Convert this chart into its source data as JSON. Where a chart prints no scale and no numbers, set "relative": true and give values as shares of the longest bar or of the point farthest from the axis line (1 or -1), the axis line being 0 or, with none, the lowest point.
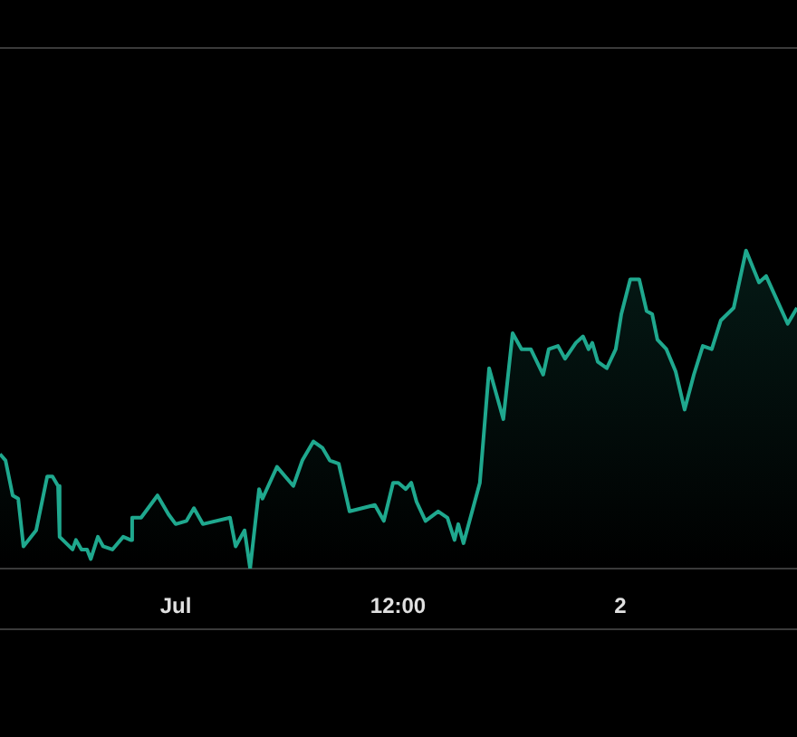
{
  "chart_data": {
    "type": "area",
    "relative": true,
    "tick_labels": "x",
    "xlim": [
      "--06-30T14:31",
      "--07-02T09:32"
    ],
    "xticks": [
      {
        "value": "--07-01",
        "label": "Jul"
      },
      {
        "value": "--07-01T12:00",
        "label": "12:00"
      },
      {
        "value": "--07-02",
        "label": "2"
      }
    ],
    "x": [
      "--06-30T14:31",
      "--06-30T14:49",
      "--06-30T15:12",
      "--06-30T15:30",
      "--06-30T15:47",
      "--06-30T16:28",
      "--06-30T17:04",
      "--06-30T17:21",
      "--06-30T17:39",
      "--06-30T17:44",
      "--06-30T18:26",
      "--06-30T18:37",
      "--06-30T18:55",
      "--06-30T19:13",
      "--06-30T19:25",
      "--06-30T19:48",
      "--06-30T20:05",
      "--06-30T20:35",
      "--06-30T21:10",
      "--06-30T21:34",
      "--06-30T21:39",
      "--06-30T22:08",
      "--06-30T23:01",
      "--06-30T23:37",
      "--07-01T00:00",
      "--07-01T00:35",
      "--07-01T00:59",
      "--07-01T01:28",
      "--07-01T02:56",
      "--07-01T03:14",
      "--07-01T03:43",
      "--07-01T04:01",
      "--07-01T04:30",
      "--07-01T04:41",
      "--07-01T05:28",
      "--07-01T06:21",
      "--07-01T06:50",
      "--07-01T07:26",
      "--07-01T07:55",
      "--07-01T08:19",
      "--07-01T08:48",
      "--07-01T09:23",
      "--07-01T10:04",
      "--07-01T10:45",
      "--07-01T11:14",
      "--07-01T11:44",
      "--07-01T12:01",
      "--07-01T12:25",
      "--07-01T12:43",
      "--07-01T13:00",
      "--07-01T13:29",
      "--07-01T14:10",
      "--07-01T14:40",
      "--07-01T15:03",
      "--07-01T15:15",
      "--07-01T15:32",
      "--07-01T16:25",
      "--07-01T16:55",
      "--07-01T17:41",
      "--07-01T18:11",
      "--07-01T18:40",
      "--07-01T19:10",
      "--07-01T19:50",
      "--07-01T20:08",
      "--07-01T20:38",
      "--07-01T21:01",
      "--07-01T21:36",
      "--07-01T21:59",
      "--07-01T22:17",
      "--07-01T22:29",
      "--07-01T22:47",
      "--07-01T23:16",
      "--07-01T23:45",
      "--07-02T00:03",
      "--07-02T00:32",
      "--07-02T01:01",
      "--07-02T01:25",
      "--07-02T01:43",
      "--07-02T02:00",
      "--07-02T02:29",
      "--07-02T02:59",
      "--07-02T03:28",
      "--07-02T03:58",
      "--07-02T04:27",
      "--07-02T04:56",
      "--07-02T05:25",
      "--07-02T06:07",
      "--07-02T06:47",
      "--07-02T07:29",
      "--07-02T07:52",
      "--07-02T09:02",
      "--07-02T09:32"
    ],
    "values": [
      0.36,
      0.34,
      0.23,
      0.22,
      0.07,
      0.12,
      0.29,
      0.29,
      0.26,
      0.1,
      0.06,
      0.09,
      0.06,
      0.06,
      0.03,
      0.1,
      0.07,
      0.06,
      0.1,
      0.09,
      0.16,
      0.16,
      0.23,
      0.17,
      0.14,
      0.15,
      0.19,
      0.14,
      0.16,
      0.07,
      0.12,
      0,
      0.25,
      0.22,
      0.32,
      0.26,
      0.34,
      0.4,
      0.38,
      0.34,
      0.33,
      0.18,
      0.19,
      0.2,
      0.15,
      0.27,
      0.27,
      0.25,
      0.27,
      0.21,
      0.15,
      0.18,
      0.16,
      0.09,
      0.14,
      0.08,
      0.27,
      0.63,
      0.47,
      0.74,
      0.69,
      0.69,
      0.61,
      0.69,
      0.7,
      0.66,
      0.71,
      0.73,
      0.69,
      0.71,
      0.65,
      0.63,
      0.69,
      0.8,
      0.91,
      0.91,
      0.81,
      0.8,
      0.72,
      0.69,
      0.62,
      0.5,
      0.61,
      0.7,
      0.69,
      0.78,
      0.82,
      1,
      0.9,
      0.92,
      0.77,
      0.82
    ],
    "color": "#1fa88e"
  }
}
